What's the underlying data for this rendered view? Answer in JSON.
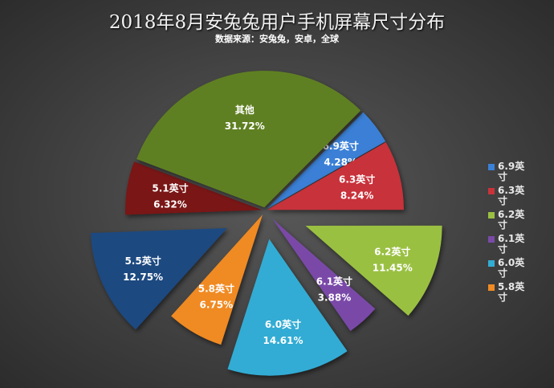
{
  "chart_data": {
    "type": "pie",
    "title": "2018年8月安兔兔用户手机屏幕尺寸分布",
    "subtitle": "数据来源：安兔兔，安卓，全球",
    "legend_position": "right",
    "slices": [
      {
        "label": "6.9英寸",
        "value": 4.28,
        "value_label": "4.28%",
        "color": "#3a80d6",
        "exploded": false
      },
      {
        "label": "6.3英寸",
        "value": 8.24,
        "value_label": "8.24%",
        "color": "#c8333a",
        "exploded": false
      },
      {
        "label": "6.2英寸",
        "value": 11.45,
        "value_label": "11.45%",
        "color": "#9ac043",
        "exploded": true
      },
      {
        "label": "6.1英寸",
        "value": 3.88,
        "value_label": "3.88%",
        "color": "#7a4aa8",
        "exploded": true
      },
      {
        "label": "6.0英寸",
        "value": 14.61,
        "value_label": "14.61%",
        "color": "#33acd4",
        "exploded": true
      },
      {
        "label": "5.8英寸",
        "value": 6.75,
        "value_label": "6.75%",
        "color": "#f08a24",
        "exploded": false
      },
      {
        "label": "5.5英寸",
        "value": 12.75,
        "value_label": "12.75%",
        "color": "#1d4a80",
        "exploded": true
      },
      {
        "label": "5.1英寸",
        "value": 6.32,
        "value_label": "6.32%",
        "color": "#7a1414",
        "exploded": false
      },
      {
        "label": "其他",
        "value": 31.72,
        "value_label": "31.72%",
        "color": "#5f8020",
        "exploded": false
      }
    ],
    "legend": [
      {
        "label": "6.9英寸",
        "color": "#3a80d6"
      },
      {
        "label": "6.3英寸",
        "color": "#c8333a"
      },
      {
        "label": "6.2英寸",
        "color": "#9ac043"
      },
      {
        "label": "6.1英寸",
        "color": "#7a4aa8"
      },
      {
        "label": "6.0英寸",
        "color": "#33acd4"
      },
      {
        "label": "5.8英寸",
        "color": "#f08a24"
      }
    ]
  }
}
